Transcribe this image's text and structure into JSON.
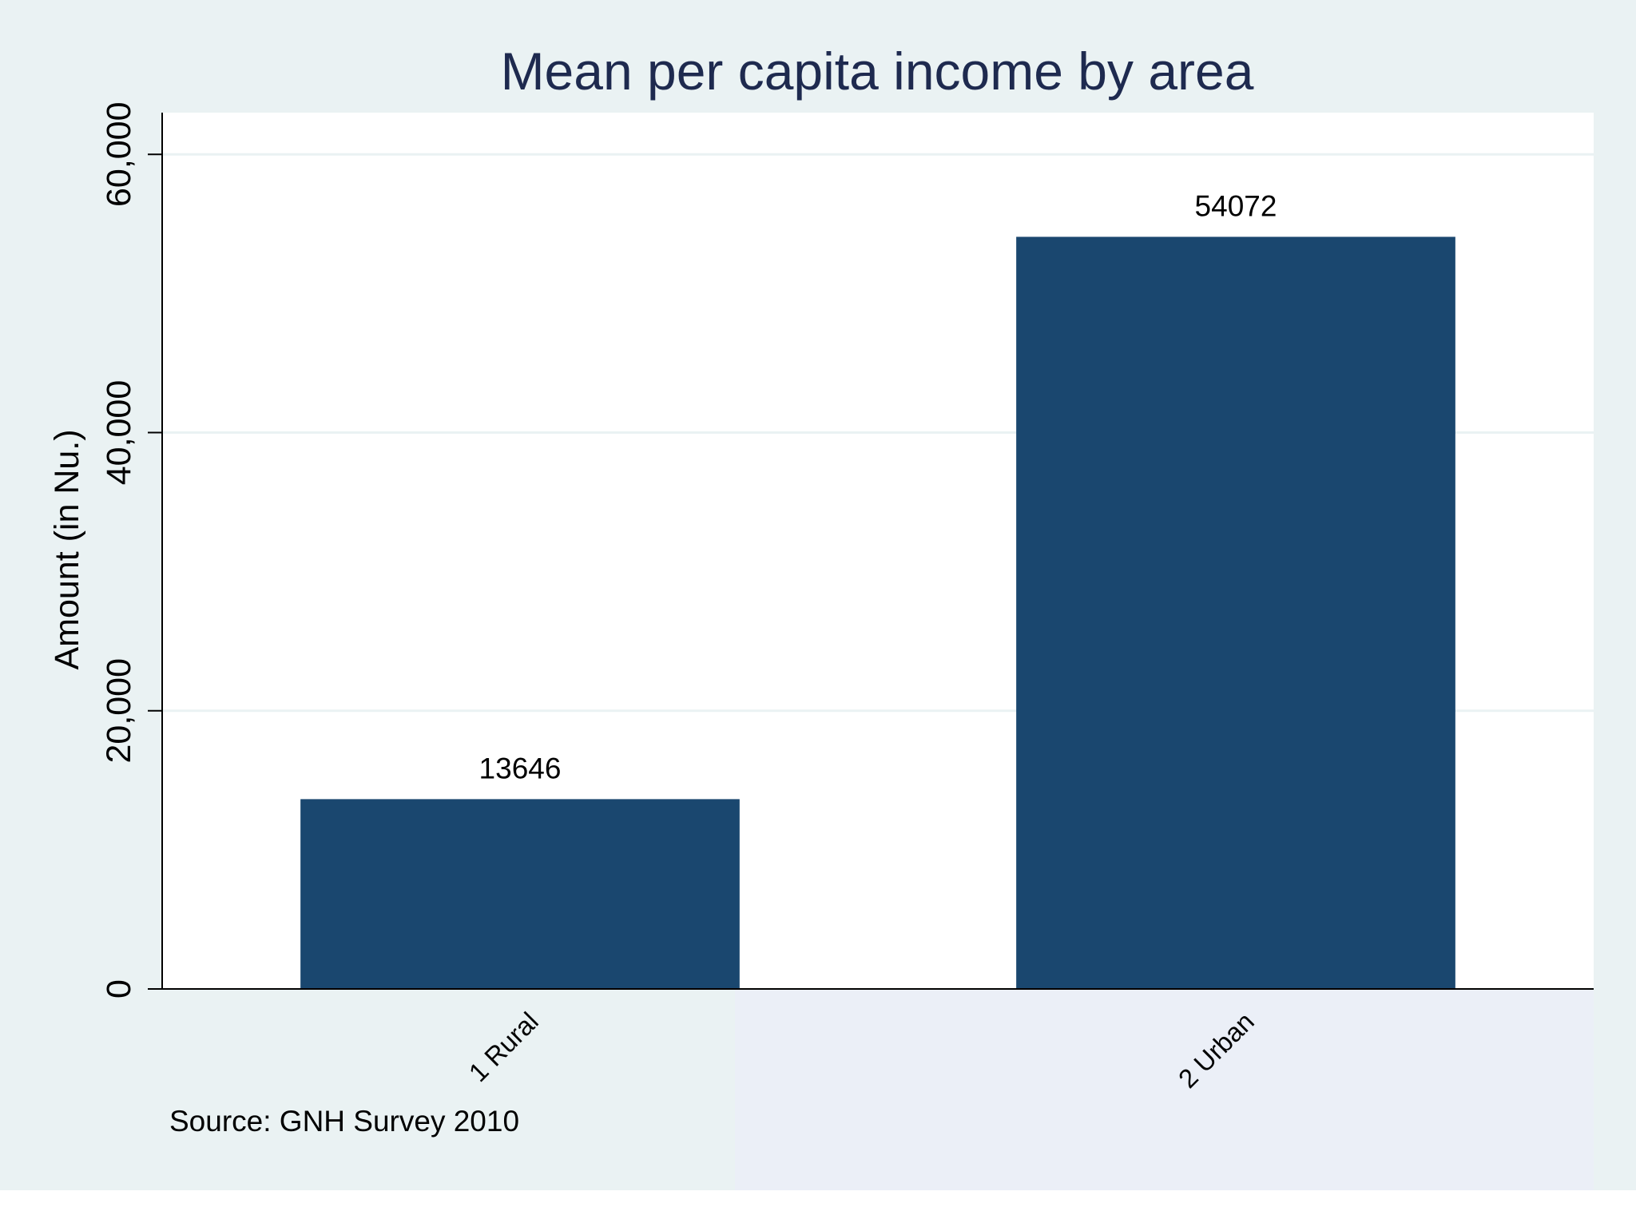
{
  "chart_data": {
    "type": "bar",
    "title": "Mean per capita income by area",
    "xlabel": "",
    "ylabel": "Amount (in Nu.)",
    "categories": [
      "1 Rural",
      "2 Urban"
    ],
    "values": [
      13646,
      54072
    ],
    "value_labels": [
      "13646",
      "54072"
    ],
    "ylim": [
      0,
      63000
    ],
    "yticks": [
      0,
      20000,
      40000,
      60000
    ],
    "ytick_labels": [
      "0",
      "20,000",
      "40,000",
      "60,000"
    ],
    "grid": true,
    "note": "Source: GNH Survey 2010",
    "colors": {
      "background": "#eaf2f3",
      "plot_background": "#ffffff",
      "bar": "#1a476f",
      "gridline": "#eaf2f3",
      "axis": "#000000",
      "title": "#1e2a4f"
    }
  }
}
